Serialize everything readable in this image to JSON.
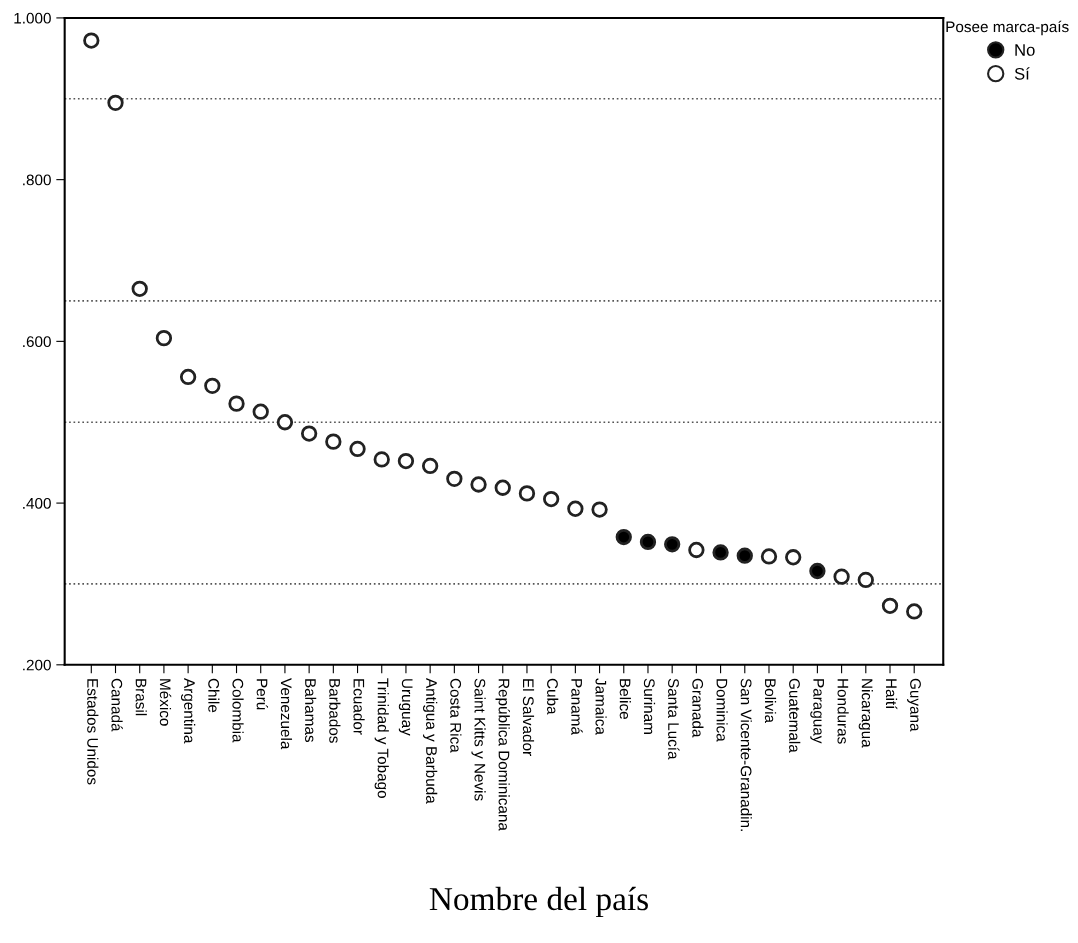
{
  "chart_data": {
    "type": "scatter",
    "xlabel": "Nombre del país",
    "legend_title": "Posee marca-país",
    "categories": [
      "Estados Unidos",
      "Canadá",
      "Brasil",
      "México",
      "Argentina",
      "Chile",
      "Colombia",
      "Perú",
      "Venezuela",
      "Bahamas",
      "Barbados",
      "Ecuador",
      "Trinidad y Tobago",
      "Uruguay",
      "Antigua y Barbuda",
      "Costa Rica",
      "Saint Kitts y Nevis",
      "República Dominicana",
      "El Salvador",
      "Cuba",
      "Panamá",
      "Jamaica",
      "Belice",
      "Surinam",
      "Santa Lucía",
      "Granada",
      "Dominica",
      "San Vicente-Granadin.",
      "Bolivia",
      "Guatemala",
      "Paraguay",
      "Honduras",
      "Nicaragua",
      "Haití",
      "Guyana"
    ],
    "series": [
      {
        "name": "No",
        "color": "#000000",
        "values": [
          null,
          null,
          null,
          null,
          null,
          null,
          null,
          null,
          null,
          null,
          null,
          null,
          null,
          null,
          null,
          null,
          null,
          null,
          null,
          null,
          null,
          null,
          0.358,
          0.352,
          0.349,
          null,
          0.339,
          0.335,
          null,
          null,
          0.316,
          null,
          null,
          null,
          null
        ]
      },
      {
        "name": "Sí",
        "color": "#ffffff",
        "values": [
          0.972,
          0.895,
          0.665,
          0.604,
          0.556,
          0.545,
          0.523,
          0.513,
          0.5,
          0.486,
          0.476,
          0.467,
          0.454,
          0.452,
          0.446,
          0.43,
          0.423,
          0.419,
          0.412,
          0.405,
          0.393,
          0.392,
          null,
          null,
          null,
          0.342,
          null,
          null,
          0.334,
          0.333,
          null,
          0.309,
          0.305,
          0.273,
          0.266
        ]
      }
    ],
    "ylim": [
      0.2,
      1.0
    ],
    "yticks": [
      {
        "value": 0.2,
        "label": ".200"
      },
      {
        "value": 0.4,
        "label": ".400"
      },
      {
        "value": 0.6,
        "label": ".600"
      },
      {
        "value": 0.8,
        "label": ".800"
      },
      {
        "value": 1.0,
        "label": "1.000"
      }
    ],
    "ref_lines": [
      {
        "axis": "y",
        "value": 0.9,
        "color": "#555555",
        "line_style": "dotted"
      },
      {
        "axis": "y",
        "value": 0.65,
        "color": "#555555",
        "line_style": "dotted"
      },
      {
        "axis": "y",
        "value": 0.5,
        "color": "#555555",
        "line_style": "dotted"
      },
      {
        "axis": "y",
        "value": 0.3,
        "color": "#555555",
        "line_style": "dotted"
      }
    ],
    "grid": false,
    "legend": "top right",
    "marker": "circle"
  }
}
